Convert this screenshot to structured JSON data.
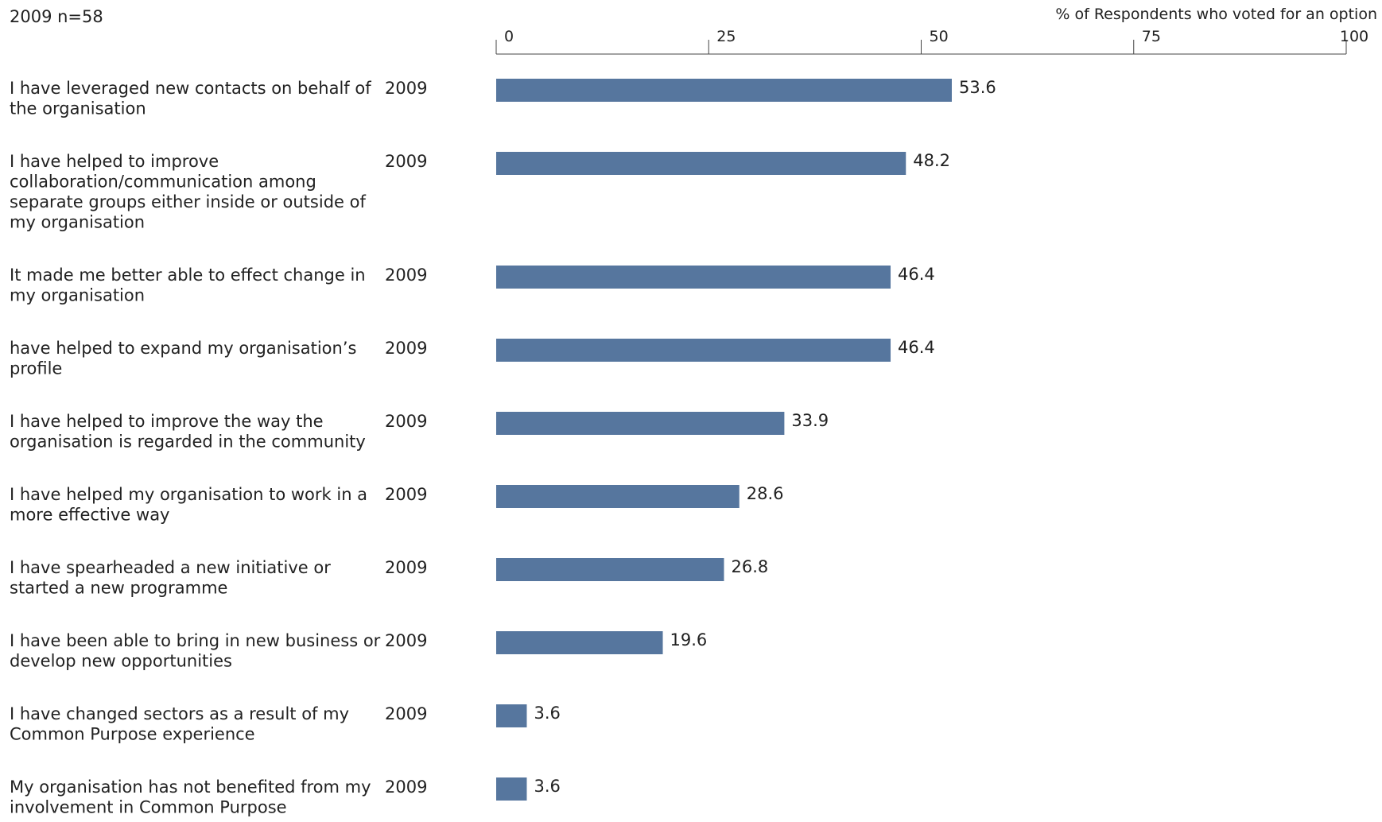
{
  "chart_data": {
    "type": "bar",
    "orientation": "horizontal",
    "header": "2009 n=58",
    "xlabel": "% of Respondents who voted for an option",
    "xlim": [
      0,
      100
    ],
    "xticks": [
      "0",
      "25",
      "50",
      "75",
      "100"
    ],
    "bar_color": "#56769e",
    "categories": [
      "I have leveraged new contacts on behalf of the organisation",
      "I have helped to improve collaboration/communication among separate groups either inside or outside of my organisation",
      "It made me better able to effect change in my organisation",
      "have helped to expand my organisation’s profile",
      "I have helped to improve the way the organisation is regarded in the community",
      "I have helped my organisation to work in a more effective way",
      "I have spearheaded a new initiative or started a new programme",
      "I have been able to bring in new business or develop new opportunities",
      "I have changed sectors as a result of my Common Purpose experience",
      "My organisation has not benefited from my involvement in Common Purpose"
    ],
    "series": [
      {
        "year_labels": [
          "2009",
          "2009",
          "2009",
          "2009",
          "2009",
          "2009",
          "2009",
          "2009",
          "2009",
          "2009"
        ],
        "values": [
          53.6,
          48.2,
          46.4,
          46.4,
          33.9,
          28.6,
          26.8,
          19.6,
          3.6,
          3.6
        ],
        "value_labels": [
          "53.6",
          "48.2",
          "46.4",
          "46.4",
          "33.9",
          "28.6",
          "26.8",
          "19.6",
          "3.6",
          "3.6"
        ]
      }
    ]
  }
}
